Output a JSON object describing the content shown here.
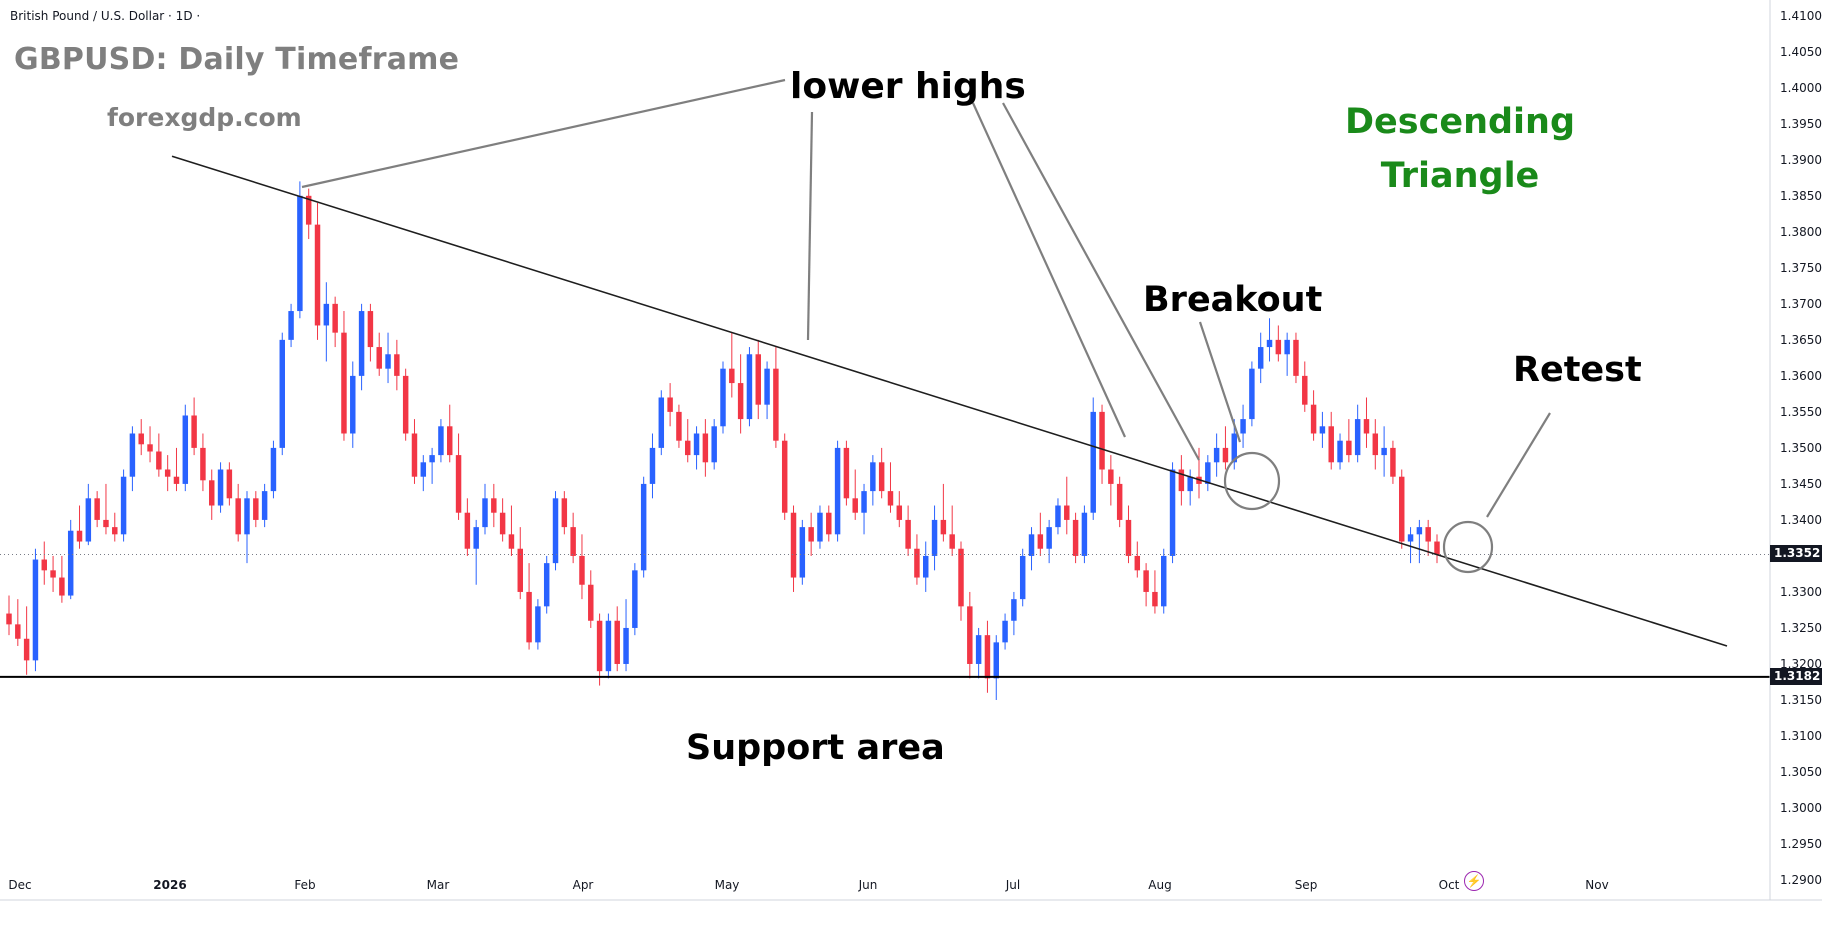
{
  "header": {
    "symbol_line": "British Pound / U.S. Dollar · 1D ·"
  },
  "title": "GBPUSD: Daily Timeframe",
  "website": "forexgdp.com",
  "annotations": {
    "lower_highs": "lower highs",
    "breakout": "Breakout",
    "retest": "Retest",
    "support": "Support area",
    "pattern_line1": "Descending",
    "pattern_line2": "Triangle"
  },
  "price_labels": {
    "last_price": "1.3352",
    "support_level": "1.3182"
  },
  "colors": {
    "up": "#2962ff",
    "down": "#f23645",
    "pattern_text": "#1a8a1a",
    "annotation_lines": "#7f7f7f",
    "trendline": "#1e1e1e",
    "price_tag": "#131722"
  },
  "icons": {
    "replay": "lightning-icon"
  },
  "chart_data": {
    "type": "candlestick",
    "title": "GBPUSD: Daily Timeframe",
    "subtitle": "British Pound / U.S. Dollar · 1D",
    "x_ticks": [
      "Dec",
      "2026",
      "Feb",
      "Mar",
      "Apr",
      "May",
      "Jun",
      "Jul",
      "Aug",
      "Sep",
      "Oct",
      "Nov"
    ],
    "y_ticks": [
      "1.2900",
      "1.2950",
      "1.3000",
      "1.3050",
      "1.3100",
      "1.3150",
      "1.3200",
      "1.3250",
      "1.3300",
      "1.3350",
      "1.3400",
      "1.3450",
      "1.3500",
      "1.3550",
      "1.3600",
      "1.3650",
      "1.3700",
      "1.3750",
      "1.3800",
      "1.3850",
      "1.3900",
      "1.3950",
      "1.4000",
      "1.4050",
      "1.4100"
    ],
    "ylim": [
      1.2882,
      1.4108
    ],
    "grid": false,
    "horizontal_levels": [
      {
        "value": 1.3182,
        "style": "solid"
      },
      {
        "value": 1.3352,
        "style": "dotted"
      }
    ],
    "trendline": {
      "from": {
        "month": "Dec",
        "price": 1.3905
      },
      "to": {
        "month": "Nov",
        "price": 1.3225
      }
    },
    "candles": [
      [
        1.327,
        1.3295,
        1.324,
        1.3255
      ],
      [
        1.3255,
        1.329,
        1.3225,
        1.3235
      ],
      [
        1.3235,
        1.328,
        1.3185,
        1.3205
      ],
      [
        1.3205,
        1.336,
        1.319,
        1.3345
      ],
      [
        1.3345,
        1.337,
        1.331,
        1.333
      ],
      [
        1.333,
        1.335,
        1.33,
        1.332
      ],
      [
        1.332,
        1.335,
        1.3285,
        1.3295
      ],
      [
        1.3295,
        1.34,
        1.329,
        1.3385
      ],
      [
        1.3385,
        1.342,
        1.336,
        1.337
      ],
      [
        1.337,
        1.345,
        1.3365,
        1.343
      ],
      [
        1.343,
        1.344,
        1.339,
        1.34
      ],
      [
        1.34,
        1.345,
        1.338,
        1.339
      ],
      [
        1.339,
        1.341,
        1.337,
        1.338
      ],
      [
        1.338,
        1.347,
        1.337,
        1.346
      ],
      [
        1.346,
        1.353,
        1.344,
        1.352
      ],
      [
        1.352,
        1.354,
        1.349,
        1.3505
      ],
      [
        1.3505,
        1.353,
        1.348,
        1.3495
      ],
      [
        1.3495,
        1.352,
        1.346,
        1.347
      ],
      [
        1.347,
        1.349,
        1.344,
        1.346
      ],
      [
        1.346,
        1.35,
        1.344,
        1.345
      ],
      [
        1.345,
        1.356,
        1.344,
        1.3545
      ],
      [
        1.3545,
        1.357,
        1.349,
        1.35
      ],
      [
        1.35,
        1.352,
        1.344,
        1.3455
      ],
      [
        1.3455,
        1.347,
        1.34,
        1.342
      ],
      [
        1.342,
        1.348,
        1.341,
        1.347
      ],
      [
        1.347,
        1.348,
        1.342,
        1.343
      ],
      [
        1.343,
        1.345,
        1.337,
        1.338
      ],
      [
        1.338,
        1.344,
        1.334,
        1.343
      ],
      [
        1.343,
        1.344,
        1.339,
        1.34
      ],
      [
        1.34,
        1.345,
        1.339,
        1.344
      ],
      [
        1.344,
        1.351,
        1.343,
        1.35
      ],
      [
        1.35,
        1.366,
        1.349,
        1.365
      ],
      [
        1.365,
        1.37,
        1.364,
        1.369
      ],
      [
        1.369,
        1.387,
        1.368,
        1.385
      ],
      [
        1.385,
        1.386,
        1.379,
        1.381
      ],
      [
        1.381,
        1.384,
        1.365,
        1.367
      ],
      [
        1.367,
        1.373,
        1.362,
        1.37
      ],
      [
        1.37,
        1.371,
        1.364,
        1.366
      ],
      [
        1.366,
        1.369,
        1.351,
        1.352
      ],
      [
        1.352,
        1.362,
        1.35,
        1.36
      ],
      [
        1.36,
        1.37,
        1.358,
        1.369
      ],
      [
        1.369,
        1.37,
        1.362,
        1.364
      ],
      [
        1.364,
        1.366,
        1.36,
        1.361
      ],
      [
        1.361,
        1.366,
        1.359,
        1.363
      ],
      [
        1.363,
        1.365,
        1.358,
        1.36
      ],
      [
        1.36,
        1.361,
        1.351,
        1.352
      ],
      [
        1.352,
        1.354,
        1.345,
        1.346
      ],
      [
        1.346,
        1.349,
        1.344,
        1.348
      ],
      [
        1.348,
        1.35,
        1.345,
        1.349
      ],
      [
        1.349,
        1.354,
        1.348,
        1.353
      ],
      [
        1.353,
        1.356,
        1.348,
        1.349
      ],
      [
        1.349,
        1.352,
        1.34,
        1.341
      ],
      [
        1.341,
        1.343,
        1.335,
        1.336
      ],
      [
        1.336,
        1.34,
        1.331,
        1.339
      ],
      [
        1.339,
        1.345,
        1.338,
        1.343
      ],
      [
        1.343,
        1.345,
        1.339,
        1.341
      ],
      [
        1.341,
        1.343,
        1.337,
        1.338
      ],
      [
        1.338,
        1.342,
        1.335,
        1.336
      ],
      [
        1.336,
        1.339,
        1.329,
        1.33
      ],
      [
        1.33,
        1.334,
        1.322,
        1.323
      ],
      [
        1.323,
        1.329,
        1.322,
        1.328
      ],
      [
        1.328,
        1.335,
        1.327,
        1.334
      ],
      [
        1.334,
        1.344,
        1.333,
        1.343
      ],
      [
        1.343,
        1.344,
        1.338,
        1.339
      ],
      [
        1.339,
        1.341,
        1.334,
        1.335
      ],
      [
        1.335,
        1.338,
        1.329,
        1.331
      ],
      [
        1.331,
        1.333,
        1.325,
        1.326
      ],
      [
        1.326,
        1.327,
        1.317,
        1.319
      ],
      [
        1.319,
        1.327,
        1.318,
        1.326
      ],
      [
        1.326,
        1.328,
        1.319,
        1.32
      ],
      [
        1.32,
        1.329,
        1.319,
        1.325
      ],
      [
        1.325,
        1.334,
        1.324,
        1.333
      ],
      [
        1.333,
        1.346,
        1.332,
        1.345
      ],
      [
        1.345,
        1.352,
        1.343,
        1.35
      ],
      [
        1.35,
        1.358,
        1.349,
        1.357
      ],
      [
        1.357,
        1.359,
        1.353,
        1.355
      ],
      [
        1.355,
        1.356,
        1.35,
        1.351
      ],
      [
        1.351,
        1.354,
        1.348,
        1.349
      ],
      [
        1.349,
        1.353,
        1.347,
        1.352
      ],
      [
        1.352,
        1.354,
        1.346,
        1.348
      ],
      [
        1.348,
        1.354,
        1.347,
        1.353
      ],
      [
        1.353,
        1.362,
        1.352,
        1.361
      ],
      [
        1.361,
        1.366,
        1.357,
        1.359
      ],
      [
        1.359,
        1.363,
        1.352,
        1.354
      ],
      [
        1.354,
        1.364,
        1.353,
        1.363
      ],
      [
        1.363,
        1.365,
        1.354,
        1.356
      ],
      [
        1.356,
        1.362,
        1.354,
        1.361
      ],
      [
        1.361,
        1.364,
        1.35,
        1.351
      ],
      [
        1.351,
        1.352,
        1.34,
        1.341
      ],
      [
        1.341,
        1.342,
        1.33,
        1.332
      ],
      [
        1.332,
        1.34,
        1.331,
        1.339
      ],
      [
        1.339,
        1.341,
        1.335,
        1.337
      ],
      [
        1.337,
        1.342,
        1.336,
        1.341
      ],
      [
        1.341,
        1.342,
        1.337,
        1.338
      ],
      [
        1.338,
        1.351,
        1.337,
        1.35
      ],
      [
        1.35,
        1.351,
        1.342,
        1.343
      ],
      [
        1.343,
        1.347,
        1.34,
        1.341
      ],
      [
        1.341,
        1.345,
        1.338,
        1.344
      ],
      [
        1.344,
        1.349,
        1.342,
        1.348
      ],
      [
        1.348,
        1.35,
        1.343,
        1.344
      ],
      [
        1.344,
        1.348,
        1.341,
        1.342
      ],
      [
        1.342,
        1.344,
        1.339,
        1.34
      ],
      [
        1.34,
        1.342,
        1.335,
        1.336
      ],
      [
        1.336,
        1.338,
        1.331,
        1.332
      ],
      [
        1.332,
        1.337,
        1.33,
        1.335
      ],
      [
        1.335,
        1.342,
        1.333,
        1.34
      ],
      [
        1.34,
        1.345,
        1.337,
        1.338
      ],
      [
        1.338,
        1.342,
        1.335,
        1.336
      ],
      [
        1.336,
        1.337,
        1.326,
        1.328
      ],
      [
        1.328,
        1.33,
        1.318,
        1.32
      ],
      [
        1.32,
        1.325,
        1.318,
        1.324
      ],
      [
        1.324,
        1.326,
        1.316,
        1.318
      ],
      [
        1.318,
        1.324,
        1.315,
        1.323
      ],
      [
        1.323,
        1.327,
        1.322,
        1.326
      ],
      [
        1.326,
        1.33,
        1.324,
        1.329
      ],
      [
        1.329,
        1.336,
        1.328,
        1.335
      ],
      [
        1.335,
        1.339,
        1.333,
        1.338
      ],
      [
        1.338,
        1.341,
        1.335,
        1.336
      ],
      [
        1.336,
        1.34,
        1.334,
        1.339
      ],
      [
        1.339,
        1.343,
        1.338,
        1.342
      ],
      [
        1.342,
        1.346,
        1.338,
        1.34
      ],
      [
        1.34,
        1.341,
        1.334,
        1.335
      ],
      [
        1.335,
        1.342,
        1.334,
        1.341
      ],
      [
        1.341,
        1.357,
        1.34,
        1.355
      ],
      [
        1.355,
        1.356,
        1.345,
        1.347
      ],
      [
        1.347,
        1.349,
        1.342,
        1.345
      ],
      [
        1.345,
        1.346,
        1.339,
        1.34
      ],
      [
        1.34,
        1.342,
        1.334,
        1.335
      ],
      [
        1.335,
        1.337,
        1.332,
        1.333
      ],
      [
        1.333,
        1.334,
        1.328,
        1.33
      ],
      [
        1.33,
        1.333,
        1.327,
        1.328
      ],
      [
        1.328,
        1.336,
        1.327,
        1.335
      ],
      [
        1.335,
        1.348,
        1.334,
        1.347
      ],
      [
        1.347,
        1.349,
        1.342,
        1.344
      ],
      [
        1.344,
        1.347,
        1.342,
        1.346
      ],
      [
        1.346,
        1.35,
        1.343,
        1.345
      ],
      [
        1.345,
        1.349,
        1.344,
        1.348
      ],
      [
        1.348,
        1.352,
        1.346,
        1.35
      ],
      [
        1.35,
        1.353,
        1.347,
        1.348
      ],
      [
        1.348,
        1.354,
        1.347,
        1.352
      ],
      [
        1.352,
        1.356,
        1.35,
        1.354
      ],
      [
        1.354,
        1.362,
        1.353,
        1.361
      ],
      [
        1.361,
        1.366,
        1.359,
        1.364
      ],
      [
        1.364,
        1.368,
        1.362,
        1.365
      ],
      [
        1.365,
        1.367,
        1.362,
        1.363
      ],
      [
        1.363,
        1.366,
        1.36,
        1.365
      ],
      [
        1.365,
        1.366,
        1.359,
        1.36
      ],
      [
        1.36,
        1.362,
        1.355,
        1.356
      ],
      [
        1.356,
        1.358,
        1.351,
        1.352
      ],
      [
        1.352,
        1.355,
        1.35,
        1.353
      ],
      [
        1.353,
        1.355,
        1.347,
        1.348
      ],
      [
        1.348,
        1.352,
        1.347,
        1.351
      ],
      [
        1.351,
        1.354,
        1.348,
        1.349
      ],
      [
        1.349,
        1.356,
        1.348,
        1.354
      ],
      [
        1.354,
        1.357,
        1.35,
        1.352
      ],
      [
        1.352,
        1.354,
        1.347,
        1.349
      ],
      [
        1.349,
        1.353,
        1.346,
        1.35
      ],
      [
        1.35,
        1.351,
        1.345,
        1.346
      ],
      [
        1.346,
        1.347,
        1.336,
        1.337
      ],
      [
        1.337,
        1.339,
        1.334,
        1.338
      ],
      [
        1.338,
        1.34,
        1.334,
        1.339
      ],
      [
        1.339,
        1.34,
        1.335,
        1.337
      ],
      [
        1.337,
        1.338,
        1.334,
        1.3352
      ]
    ]
  }
}
